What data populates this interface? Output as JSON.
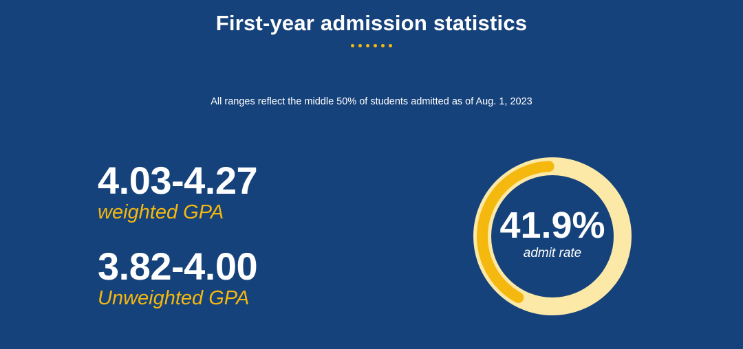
{
  "header": {
    "title": "First-year admission statistics",
    "dot_count": 6,
    "subtitle": "All ranges reflect the middle 50% of students admitted as of Aug. 1, 2023"
  },
  "stats": [
    {
      "value": "4.03-4.27",
      "label": "weighted GPA"
    },
    {
      "value": "3.82-4.00",
      "label": "Unweighted GPA"
    }
  ],
  "admit": {
    "value": "41.9%",
    "label": "admit rate",
    "fraction": 0.419
  },
  "colors": {
    "background": "#15427a",
    "accent": "#f5b80f",
    "ring_track": "#fce9a8"
  }
}
